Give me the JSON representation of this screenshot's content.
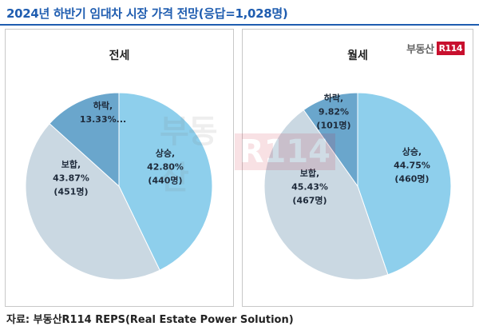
{
  "page": {
    "title": "2024년 하반기 임대차 시장 가격 전망(응답=1,028명)",
    "source": "자료: 부동산R114 REPS(Real Estate Power Solution)"
  },
  "brand": {
    "text": "부동산",
    "mark": "R114"
  },
  "colors": {
    "up": "#8ecfec",
    "flat": "#cad8e2",
    "down": "#6aa6cc",
    "title": "#1f5db0"
  },
  "chart_data": [
    {
      "type": "pie",
      "title": "전세",
      "slices": [
        {
          "name": "상승",
          "percent": 42.8,
          "percent_text": "42.80%",
          "count_text": "(440명)",
          "color": "#8ecfec"
        },
        {
          "name": "보합",
          "percent": 43.87,
          "percent_text": "43.87%",
          "count_text": "(451명)",
          "color": "#cad8e2"
        },
        {
          "name": "하락",
          "percent": 13.33,
          "percent_text": "13.33%...",
          "count_text": "",
          "color": "#6aa6cc"
        }
      ]
    },
    {
      "type": "pie",
      "title": "월세",
      "slices": [
        {
          "name": "상승",
          "percent": 44.75,
          "percent_text": "44.75%",
          "count_text": "(460명)",
          "color": "#8ecfec"
        },
        {
          "name": "보합",
          "percent": 45.43,
          "percent_text": "45.43%",
          "count_text": "(467명)",
          "color": "#cad8e2"
        },
        {
          "name": "하락",
          "percent": 9.82,
          "percent_text": "9.82%",
          "count_text": "(101명)",
          "color": "#6aa6cc"
        }
      ]
    }
  ]
}
